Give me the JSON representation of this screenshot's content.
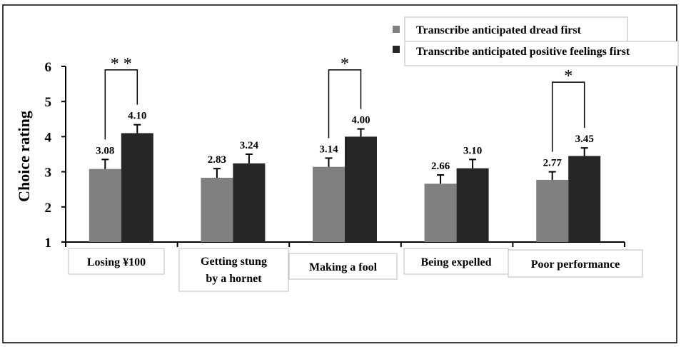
{
  "chart_data": {
    "type": "bar",
    "ylabel": "Choice rating",
    "ylim": [
      1,
      6
    ],
    "yticks": [
      "1",
      "2",
      "3",
      "4",
      "5",
      "6"
    ],
    "categories": [
      [
        "Losing ¥100"
      ],
      [
        "Getting stung",
        "by a hornet"
      ],
      [
        "Making a fool"
      ],
      [
        "Being expelled"
      ],
      [
        "Poor performance"
      ]
    ],
    "series": [
      {
        "name": "Transcribe anticipated dread first",
        "color": "#808080",
        "values": [
          3.08,
          2.83,
          3.14,
          2.66,
          2.77
        ],
        "labels": [
          "3.08",
          "2.83",
          "3.14",
          "2.66",
          "2.77"
        ],
        "errors": [
          0.27,
          0.26,
          0.25,
          0.25,
          0.23
        ]
      },
      {
        "name": "Transcribe anticipated positive feelings first",
        "color": "#262626",
        "values": [
          4.1,
          3.24,
          4.0,
          3.1,
          3.45
        ],
        "labels": [
          "4.10",
          "3.24",
          "4.00",
          "3.10",
          "3.45"
        ],
        "errors": [
          0.24,
          0.26,
          0.22,
          0.25,
          0.23
        ]
      }
    ],
    "significance": [
      {
        "category": 0,
        "text": "* *",
        "level": 5.9
      },
      {
        "category": 2,
        "text": "*",
        "level": 5.9
      },
      {
        "category": 4,
        "text": "*",
        "level": 5.55
      }
    ],
    "legend": "top-right",
    "grid": false
  }
}
